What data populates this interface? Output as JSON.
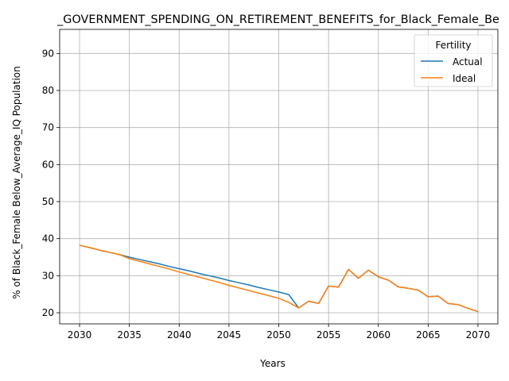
{
  "chart_data": {
    "type": "line",
    "title": "_GOVERNMENT_SPENDING_ON_RETIREMENT_BENEFITS_for_Black_Female_Be",
    "xlabel": "Years",
    "ylabel": "% of Black_Female Below_Average_IQ Population",
    "xlim": [
      2028,
      2072
    ],
    "ylim": [
      17,
      96.5
    ],
    "xticks": [
      2030,
      2035,
      2040,
      2045,
      2050,
      2055,
      2060,
      2065,
      2070
    ],
    "yticks": [
      20,
      30,
      40,
      50,
      60,
      70,
      80,
      90
    ],
    "grid": true,
    "legend": {
      "title": "Fertility",
      "placement": "top-right"
    },
    "series": [
      {
        "name": "Actual",
        "color": "#1f77b4",
        "x": [
          2030,
          2031,
          2032,
          2033,
          2034,
          2035,
          2036,
          2037,
          2038,
          2039,
          2040,
          2041,
          2042,
          2043,
          2044,
          2045,
          2046,
          2047,
          2048,
          2049,
          2050,
          2051,
          2052,
          2053,
          2054,
          2055,
          2056,
          2057,
          2058,
          2059,
          2060,
          2061,
          2062,
          2063,
          2064,
          2065,
          2066,
          2067,
          2068,
          2069,
          2070
        ],
        "y": [
          38.2,
          37.6,
          36.9,
          36.3,
          35.7,
          35.0,
          34.4,
          33.8,
          33.2,
          32.5,
          31.9,
          31.3,
          30.6,
          30.0,
          29.4,
          28.7,
          28.1,
          27.5,
          26.8,
          26.2,
          25.6,
          24.9,
          21.3,
          23.1,
          22.5,
          27.2,
          26.9,
          31.7,
          29.3,
          31.5,
          29.7,
          28.8,
          27.0,
          26.6,
          26.1,
          24.3,
          24.5,
          22.5,
          22.2,
          21.2,
          20.3
        ]
      },
      {
        "name": "Ideal",
        "color": "#ff7f0e",
        "x": [
          2030,
          2031,
          2032,
          2033,
          2034,
          2035,
          2036,
          2037,
          2038,
          2039,
          2040,
          2041,
          2042,
          2043,
          2044,
          2045,
          2046,
          2047,
          2048,
          2049,
          2050,
          2051,
          2052,
          2053,
          2054,
          2055,
          2056,
          2057,
          2058,
          2059,
          2060,
          2061,
          2062,
          2063,
          2064,
          2065,
          2066,
          2067,
          2068,
          2069,
          2070
        ],
        "y": [
          38.2,
          37.6,
          36.9,
          36.3,
          35.7,
          34.6,
          33.9,
          33.2,
          32.5,
          31.8,
          31.0,
          30.3,
          29.6,
          28.9,
          28.2,
          27.4,
          26.7,
          26.0,
          25.3,
          24.6,
          23.9,
          22.8,
          21.3,
          23.1,
          22.5,
          27.2,
          26.9,
          31.7,
          29.3,
          31.5,
          29.7,
          28.8,
          27.0,
          26.6,
          26.1,
          24.3,
          24.5,
          22.5,
          22.2,
          21.2,
          20.3
        ]
      }
    ]
  }
}
